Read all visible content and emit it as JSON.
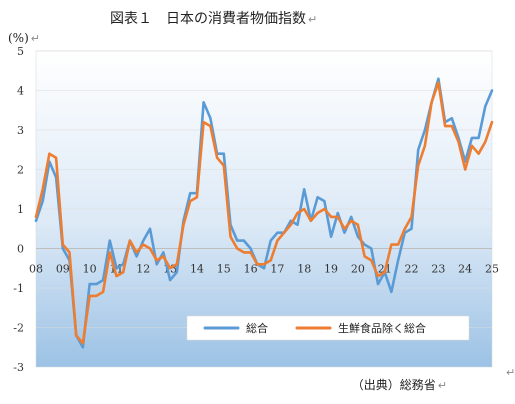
{
  "document": {
    "title": "図表１　日本の消費者物価指数",
    "source_note": "（出典）総務省",
    "para_mark": "↵"
  },
  "chart_data": {
    "type": "line",
    "title": "図表１　日本の消費者物価指数",
    "ylabel": "(%)",
    "xlabel": "",
    "ylim": [
      -3,
      5
    ],
    "yticks": [
      -3,
      -2,
      -1,
      0,
      1,
      2,
      3,
      4,
      5
    ],
    "xlim": [
      2008,
      2025
    ],
    "xticks": [
      "08",
      "09",
      "10",
      "11",
      "12",
      "13",
      "14",
      "15",
      "16",
      "17",
      "18",
      "19",
      "20",
      "21",
      "22",
      "23",
      "24",
      "25"
    ],
    "grid": "horizontal",
    "legend_position": "bottom-right",
    "background": "gradient-white-to-blue",
    "colors": {
      "総合": "#5B9BD5",
      "生鮮食品除く総合": "#ED7D31"
    },
    "series": [
      {
        "name": "総合",
        "x": [
          2008.0,
          2008.25,
          2008.5,
          2008.75,
          2009.0,
          2009.25,
          2009.5,
          2009.75,
          2010.0,
          2010.25,
          2010.5,
          2010.75,
          2011.0,
          2011.25,
          2011.5,
          2011.75,
          2012.0,
          2012.25,
          2012.5,
          2012.75,
          2013.0,
          2013.25,
          2013.5,
          2013.75,
          2014.0,
          2014.25,
          2014.5,
          2014.75,
          2015.0,
          2015.25,
          2015.5,
          2015.75,
          2016.0,
          2016.25,
          2016.5,
          2016.75,
          2017.0,
          2017.25,
          2017.5,
          2017.75,
          2018.0,
          2018.25,
          2018.5,
          2018.75,
          2019.0,
          2019.25,
          2019.5,
          2019.75,
          2020.0,
          2020.25,
          2020.5,
          2020.75,
          2021.0,
          2021.25,
          2021.5,
          2021.75,
          2022.0,
          2022.25,
          2022.5,
          2022.75,
          2023.0,
          2023.25,
          2023.5,
          2023.75,
          2024.0,
          2024.25,
          2024.5,
          2024.75,
          2025.0
        ],
        "values": [
          0.7,
          1.2,
          2.2,
          1.8,
          0.0,
          -0.3,
          -2.2,
          -2.5,
          -0.9,
          -0.9,
          -0.8,
          0.2,
          -0.5,
          -0.4,
          0.2,
          -0.2,
          0.2,
          0.5,
          -0.4,
          -0.1,
          -0.8,
          -0.6,
          0.7,
          1.4,
          1.4,
          3.7,
          3.3,
          2.4,
          2.4,
          0.6,
          0.2,
          0.2,
          0.0,
          -0.4,
          -0.5,
          0.2,
          0.4,
          0.4,
          0.7,
          0.6,
          1.5,
          0.7,
          1.3,
          1.2,
          0.3,
          0.9,
          0.4,
          0.8,
          0.3,
          0.1,
          0.0,
          -0.9,
          -0.6,
          -1.1,
          -0.3,
          0.4,
          0.5,
          2.5,
          3.0,
          3.7,
          4.3,
          3.2,
          3.3,
          2.8,
          2.2,
          2.8,
          2.8,
          3.6,
          4.0
        ]
      },
      {
        "name": "生鮮食品除く総合",
        "x": [
          2008.0,
          2008.25,
          2008.5,
          2008.75,
          2009.0,
          2009.25,
          2009.5,
          2009.75,
          2010.0,
          2010.25,
          2010.5,
          2010.75,
          2011.0,
          2011.25,
          2011.5,
          2011.75,
          2012.0,
          2012.25,
          2012.5,
          2012.75,
          2013.0,
          2013.25,
          2013.5,
          2013.75,
          2014.0,
          2014.25,
          2014.5,
          2014.75,
          2015.0,
          2015.25,
          2015.5,
          2015.75,
          2016.0,
          2016.25,
          2016.5,
          2016.75,
          2017.0,
          2017.25,
          2017.5,
          2017.75,
          2018.0,
          2018.25,
          2018.5,
          2018.75,
          2019.0,
          2019.25,
          2019.5,
          2019.75,
          2020.0,
          2020.25,
          2020.5,
          2020.75,
          2021.0,
          2021.25,
          2021.5,
          2021.75,
          2022.0,
          2022.25,
          2022.5,
          2022.75,
          2023.0,
          2023.25,
          2023.5,
          2023.75,
          2024.0,
          2024.25,
          2024.5,
          2024.75,
          2025.0
        ],
        "values": [
          0.8,
          1.5,
          2.4,
          2.3,
          0.1,
          -0.1,
          -2.2,
          -2.4,
          -1.2,
          -1.2,
          -1.1,
          -0.1,
          -0.7,
          -0.6,
          0.2,
          -0.1,
          0.1,
          0.0,
          -0.3,
          -0.2,
          -0.5,
          -0.4,
          0.6,
          1.2,
          1.3,
          3.2,
          3.1,
          2.3,
          2.1,
          0.3,
          0.0,
          -0.1,
          -0.1,
          -0.4,
          -0.4,
          -0.3,
          0.2,
          0.4,
          0.6,
          0.9,
          1.0,
          0.7,
          0.9,
          1.0,
          0.8,
          0.8,
          0.5,
          0.7,
          0.6,
          -0.2,
          -0.3,
          -0.7,
          -0.6,
          0.1,
          0.1,
          0.5,
          0.8,
          2.1,
          2.6,
          3.7,
          4.2,
          3.1,
          3.1,
          2.7,
          2.0,
          2.6,
          2.4,
          2.7,
          3.2
        ]
      }
    ]
  }
}
